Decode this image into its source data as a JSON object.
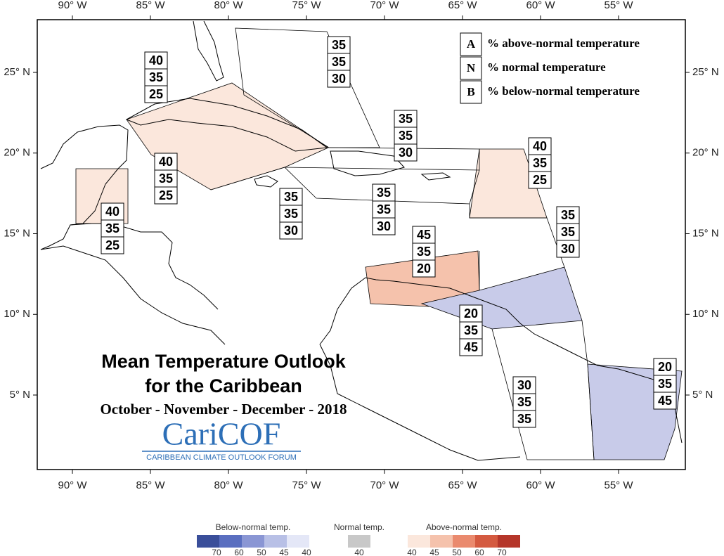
{
  "title": {
    "line1": "Mean Temperature Outlook",
    "line2": "for the Caribbean",
    "period": "October - November - December - 2018"
  },
  "logo": {
    "name": "CariCOF",
    "caption": "CARIBBEAN CLIMATE OUTLOOK FORUM"
  },
  "key": [
    {
      "letter": "A",
      "text": "% above-normal temperature"
    },
    {
      "letter": "N",
      "text": "% normal temperature"
    },
    {
      "letter": "B",
      "text": "% below-normal temperature"
    }
  ],
  "lon_ticks": [
    {
      "value": -90,
      "label": "90° W"
    },
    {
      "value": -85,
      "label": "85° W"
    },
    {
      "value": -80,
      "label": "80° W"
    },
    {
      "value": -75,
      "label": "75° W"
    },
    {
      "value": -70,
      "label": "70° W"
    },
    {
      "value": -65,
      "label": "65° W"
    },
    {
      "value": -60,
      "label": "60° W"
    },
    {
      "value": -55,
      "label": "55° W"
    }
  ],
  "lat_ticks": [
    {
      "value": 25,
      "label": "25° N"
    },
    {
      "value": 20,
      "label": "20° N"
    },
    {
      "value": 15,
      "label": "15° N"
    },
    {
      "value": 10,
      "label": "10° N"
    },
    {
      "value": 5,
      "label": "5° N"
    }
  ],
  "regions": [
    {
      "A": 40,
      "N": 35,
      "B": 25,
      "color": "#fbe7dc"
    },
    {
      "A": 40,
      "N": 35,
      "B": 25,
      "color": "#fbe7dc"
    },
    {
      "A": 40,
      "N": 35,
      "B": 25,
      "color": "#fbe7dc"
    },
    {
      "A": 35,
      "N": 35,
      "B": 30
    },
    {
      "A": 35,
      "N": 35,
      "B": 30
    },
    {
      "A": 35,
      "N": 35,
      "B": 30
    },
    {
      "A": 35,
      "N": 35,
      "B": 30
    },
    {
      "A": 40,
      "N": 35,
      "B": 25,
      "color": "#fbe7dc"
    },
    {
      "A": 35,
      "N": 35,
      "B": 30
    },
    {
      "A": 45,
      "N": 35,
      "B": 20,
      "color": "#f5c2ac"
    },
    {
      "A": 20,
      "N": 35,
      "B": 45,
      "color": "#c8cbe9"
    },
    {
      "A": 30,
      "N": 35,
      "B": 35
    },
    {
      "A": 20,
      "N": 35,
      "B": 45,
      "color": "#c8cbe9"
    }
  ],
  "legend_bar": {
    "below": {
      "title": "Below-normal temp.",
      "ticks": [
        70,
        60,
        50,
        45,
        40
      ],
      "colors": [
        "#3a4e9a",
        "#5a6fc0",
        "#8a96d4",
        "#b8c0e6",
        "#e4e7f7"
      ]
    },
    "normal": {
      "title": "Normal temp.",
      "ticks": [
        40
      ],
      "colors": [
        "#c8c8c8"
      ]
    },
    "above": {
      "title": "Above-normal temp.",
      "ticks": [
        40,
        45,
        50,
        60,
        70
      ],
      "colors": [
        "#fbe7dc",
        "#f5c2ac",
        "#ea8a6e",
        "#d45a40",
        "#b5362a"
      ]
    }
  }
}
